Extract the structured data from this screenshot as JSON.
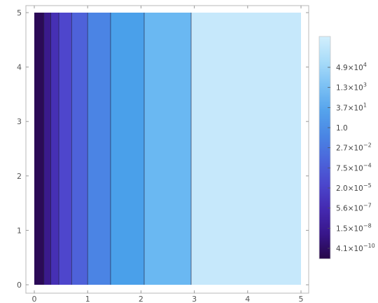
{
  "chart_data": {
    "type": "contour",
    "title": "",
    "xlabel": "",
    "ylabel": "",
    "xlim": [
      0,
      5
    ],
    "ylim": [
      0,
      5
    ],
    "x_ticks": [
      "0",
      "1",
      "2",
      "3",
      "4",
      "5"
    ],
    "y_ticks": [
      "0",
      "1",
      "2",
      "3",
      "4",
      "5"
    ],
    "contour_levels_x": [
      0.18,
      0.31,
      0.46,
      0.7,
      1.0,
      1.43,
      2.06,
      2.94
    ],
    "band_colors": [
      "#2b0a57",
      "#3a1a8c",
      "#4630b4",
      "#4e46cc",
      "#4e62d9",
      "#4b84e4",
      "#4aa0ea",
      "#6ab8f2",
      "#c6e8fb"
    ],
    "colorbar": {
      "labels": [
        {
          "base": "4.1×10",
          "exp": "−10"
        },
        {
          "base": "1.5×10",
          "exp": "−8"
        },
        {
          "base": "5.6×10",
          "exp": "−7"
        },
        {
          "base": "2.0×10",
          "exp": "−5"
        },
        {
          "base": "7.5×10",
          "exp": "−4"
        },
        {
          "base": "2.7×10",
          "exp": "−2"
        },
        {
          "base": "1.0",
          "exp": ""
        },
        {
          "base": "3.7×10",
          "exp": "1"
        },
        {
          "base": "1.3×10",
          "exp": "3"
        },
        {
          "base": "4.9×10",
          "exp": "4"
        }
      ],
      "gradient": [
        "#260748",
        "#38168a",
        "#4429b0",
        "#4b46cc",
        "#4b66db",
        "#4a86e4",
        "#55a3ec",
        "#7cc1f4",
        "#a9dcf9",
        "#d2effd"
      ]
    }
  }
}
